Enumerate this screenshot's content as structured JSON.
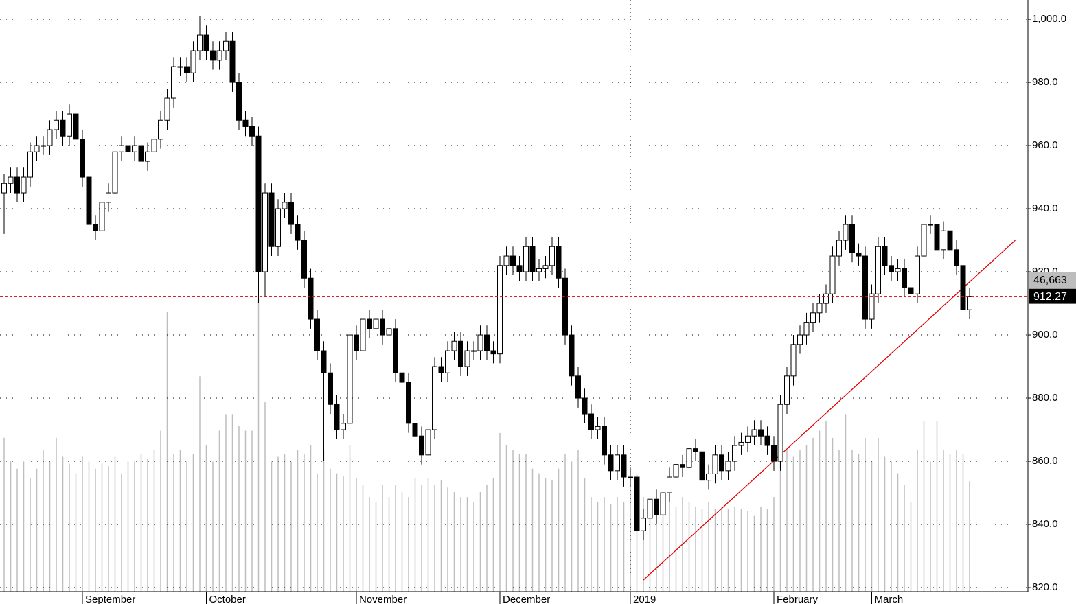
{
  "chart_data": {
    "type": "candlestick",
    "categories": [
      null,
      null,
      null,
      null,
      null,
      null,
      null,
      null,
      null,
      null,
      null,
      null,
      "September",
      null,
      null,
      null,
      null,
      null,
      null,
      null,
      null,
      null,
      null,
      null,
      null,
      null,
      null,
      null,
      null,
      null,
      null,
      "October",
      null,
      null,
      null,
      null,
      null,
      null,
      null,
      null,
      null,
      null,
      null,
      null,
      null,
      null,
      null,
      null,
      null,
      null,
      null,
      null,
      null,
      null,
      "November",
      null,
      null,
      null,
      null,
      null,
      null,
      null,
      null,
      null,
      null,
      null,
      null,
      null,
      null,
      null,
      null,
      null,
      null,
      null,
      null,
      null,
      "December",
      null,
      null,
      null,
      null,
      null,
      null,
      null,
      null,
      null,
      null,
      null,
      null,
      null,
      null,
      null,
      null,
      null,
      null,
      null,
      "2019",
      null,
      null,
      null,
      null,
      null,
      null,
      null,
      null,
      null,
      null,
      null,
      null,
      null,
      null,
      null,
      null,
      null,
      null,
      null,
      null,
      null,
      "February",
      null,
      null,
      null,
      null,
      null,
      null,
      null,
      null,
      null,
      null,
      null,
      null,
      null,
      null,
      "March",
      null,
      null,
      null,
      null,
      null,
      null,
      null,
      null,
      null,
      null,
      null,
      null,
      null,
      null,
      null
    ],
    "open": [
      945,
      948,
      950,
      945,
      950,
      958,
      960,
      960,
      965,
      968,
      963,
      970,
      962,
      950,
      935,
      933,
      942,
      945,
      958,
      960,
      958,
      960,
      955,
      958,
      962,
      968,
      975,
      985,
      985,
      983,
      990,
      995,
      990,
      987,
      990,
      993,
      980,
      968,
      966,
      963,
      920,
      945,
      928,
      940,
      942,
      935,
      930,
      918,
      905,
      895,
      888,
      878,
      870,
      872,
      900,
      895,
      905,
      902,
      905,
      900,
      902,
      888,
      885,
      872,
      868,
      862,
      870,
      890,
      888,
      895,
      898,
      890,
      895,
      895,
      900,
      895,
      894,
      922,
      925,
      922,
      920,
      928,
      920,
      921,
      922,
      928,
      918,
      900,
      887,
      880,
      875,
      870,
      871,
      862,
      857,
      862,
      855,
      855,
      838,
      842,
      848,
      843,
      850,
      855,
      859,
      858,
      864,
      863,
      854,
      856,
      862,
      857,
      860,
      865,
      866,
      868,
      870,
      868,
      865,
      860,
      878,
      887,
      897,
      900,
      904,
      907,
      910,
      913,
      925,
      930,
      935,
      926,
      925,
      905,
      913,
      928,
      922,
      920,
      921,
      915,
      913,
      925,
      935,
      935,
      927,
      933,
      927,
      922,
      908
    ],
    "high": [
      951,
      953,
      953,
      953,
      961,
      963,
      963,
      968,
      971,
      971,
      973,
      973,
      965,
      953,
      938,
      945,
      948,
      961,
      963,
      963,
      963,
      963,
      961,
      965,
      971,
      978,
      988,
      988,
      988,
      993,
      1001,
      998,
      993,
      993,
      996,
      996,
      983,
      971,
      969,
      966,
      948,
      948,
      943,
      945,
      945,
      938,
      933,
      921,
      908,
      898,
      891,
      881,
      875,
      903,
      903,
      908,
      908,
      908,
      908,
      905,
      905,
      891,
      888,
      875,
      871,
      873,
      893,
      893,
      898,
      901,
      901,
      898,
      898,
      903,
      903,
      898,
      925,
      928,
      928,
      925,
      931,
      931,
      924,
      925,
      931,
      931,
      921,
      903,
      890,
      883,
      878,
      874,
      874,
      865,
      865,
      865,
      858,
      858,
      845,
      851,
      851,
      853,
      858,
      862,
      862,
      867,
      867,
      866,
      859,
      865,
      865,
      863,
      868,
      869,
      871,
      873,
      873,
      871,
      868,
      881,
      890,
      900,
      903,
      907,
      910,
      913,
      916,
      928,
      933,
      938,
      938,
      929,
      928,
      916,
      931,
      931,
      925,
      924,
      924,
      918,
      928,
      938,
      938,
      938,
      936,
      936,
      930,
      925,
      915
    ],
    "low": [
      932,
      945,
      942,
      942,
      947,
      955,
      957,
      957,
      962,
      960,
      960,
      959,
      947,
      932,
      930,
      930,
      939,
      942,
      955,
      955,
      955,
      952,
      952,
      955,
      959,
      965,
      972,
      982,
      980,
      980,
      987,
      987,
      984,
      984,
      987,
      977,
      965,
      963,
      960,
      910,
      912,
      925,
      925,
      937,
      932,
      927,
      915,
      902,
      892,
      860,
      875,
      867,
      867,
      869,
      892,
      892,
      899,
      899,
      897,
      897,
      885,
      882,
      869,
      865,
      859,
      859,
      867,
      885,
      885,
      892,
      887,
      887,
      892,
      892,
      892,
      891,
      891,
      919,
      919,
      917,
      917,
      917,
      917,
      918,
      919,
      915,
      897,
      884,
      877,
      872,
      867,
      867,
      859,
      854,
      854,
      852,
      852,
      823,
      835,
      839,
      840,
      840,
      847,
      852,
      855,
      855,
      860,
      851,
      851,
      853,
      854,
      854,
      857,
      862,
      863,
      865,
      865,
      862,
      857,
      857,
      875,
      884,
      894,
      897,
      901,
      904,
      907,
      910,
      922,
      927,
      923,
      922,
      902,
      902,
      910,
      919,
      917,
      917,
      912,
      910,
      910,
      922,
      932,
      924,
      924,
      924,
      919,
      905,
      905
    ],
    "close": [
      948,
      950,
      945,
      950,
      958,
      960,
      960,
      965,
      968,
      963,
      970,
      962,
      950,
      935,
      933,
      942,
      945,
      958,
      960,
      958,
      960,
      955,
      958,
      962,
      968,
      975,
      985,
      985,
      983,
      990,
      995,
      990,
      987,
      990,
      993,
      980,
      968,
      966,
      963,
      920,
      945,
      928,
      940,
      942,
      935,
      930,
      918,
      905,
      895,
      888,
      878,
      870,
      872,
      900,
      895,
      905,
      902,
      905,
      900,
      902,
      888,
      885,
      872,
      868,
      862,
      870,
      890,
      888,
      895,
      898,
      890,
      895,
      895,
      900,
      895,
      894,
      922,
      925,
      922,
      920,
      928,
      920,
      921,
      922,
      928,
      918,
      900,
      887,
      880,
      875,
      870,
      871,
      862,
      857,
      862,
      855,
      855,
      838,
      842,
      848,
      843,
      850,
      855,
      859,
      858,
      864,
      863,
      854,
      856,
      862,
      857,
      860,
      865,
      866,
      868,
      870,
      868,
      865,
      860,
      878,
      887,
      897,
      900,
      904,
      907,
      910,
      913,
      925,
      930,
      935,
      926,
      925,
      905,
      913,
      928,
      922,
      920,
      921,
      915,
      913,
      925,
      935,
      935,
      927,
      933,
      927,
      922,
      908,
      912.27
    ],
    "volume": {
      "color": "#bdbdbd",
      "last_value_label": "46,663",
      "values": [
        65000,
        55000,
        52000,
        55000,
        48000,
        52000,
        60000,
        55000,
        65000,
        57000,
        54000,
        50000,
        57000,
        55000,
        52000,
        54000,
        53000,
        57000,
        50000,
        55000,
        55000,
        58000,
        56000,
        60000,
        68000,
        118000,
        58000,
        60000,
        55000,
        58000,
        91000,
        62000,
        55000,
        68000,
        75000,
        75000,
        70000,
        68000,
        68000,
        124000,
        80000,
        55000,
        57000,
        58000,
        55000,
        60000,
        58000,
        62000,
        50000,
        60000,
        52000,
        50000,
        49000,
        62000,
        48000,
        45000,
        40000,
        38000,
        45000,
        40000,
        45000,
        42000,
        40000,
        48000,
        45000,
        48000,
        45000,
        47000,
        44000,
        42000,
        40000,
        40000,
        38000,
        42000,
        45000,
        48000,
        67000,
        62000,
        60000,
        58000,
        58000,
        52000,
        50000,
        48000,
        47000,
        52000,
        58000,
        55000,
        60000,
        48000,
        40000,
        38000,
        40000,
        37000,
        40000,
        38000,
        45000,
        50000,
        40000,
        38000,
        35000,
        35000,
        38000,
        36000,
        40000,
        38000,
        36000,
        35000,
        38000,
        35000,
        36000,
        35000,
        36000,
        35000,
        34000,
        32000,
        36000,
        35000,
        40000,
        62000,
        60000,
        57000,
        60000,
        62000,
        65000,
        68000,
        72000,
        65000,
        60000,
        75000,
        60000,
        58000,
        65000,
        55000,
        65000,
        57000,
        55000,
        50000,
        45000,
        38000,
        60000,
        72000,
        55000,
        72000,
        60000,
        58000,
        60000,
        58000,
        46663
      ]
    },
    "vlim": [
      0,
      250000
    ],
    "ylim": [
      818.7,
      1006.1
    ],
    "yticks": [
      {
        "value": 820,
        "label": "820.0"
      },
      {
        "value": 840,
        "label": "840.0"
      },
      {
        "value": 860,
        "label": "860.0"
      },
      {
        "value": 880,
        "label": "880.0"
      },
      {
        "value": 900,
        "label": "900.0"
      },
      {
        "value": 920,
        "label": "920.0"
      },
      {
        "value": 940,
        "label": "940.0"
      },
      {
        "value": 960,
        "label": "960.0"
      },
      {
        "value": 980,
        "label": "980.0"
      },
      {
        "value": 1000,
        "label": "1,000.0"
      }
    ],
    "grid": true,
    "up_color": "#ffffff",
    "down_color": "#000000",
    "last_line_color": "#e00000",
    "trendline": {
      "color": "#e00000",
      "x": [
        98,
        155
      ],
      "y": [
        822.4,
        930
      ]
    }
  }
}
